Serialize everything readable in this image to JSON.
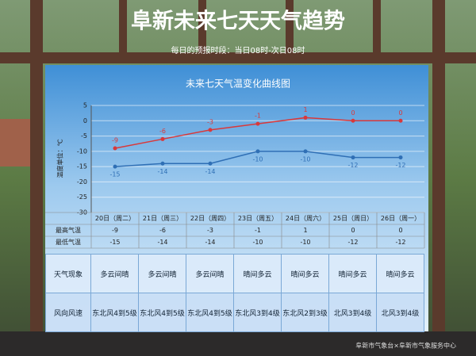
{
  "header": {
    "title": "阜新未来七天天气趋势",
    "subtitle": "每日的预报时段：当日08时-次日08时"
  },
  "chart_data": {
    "type": "line",
    "title": "未来七天气温变化曲线图",
    "ylabel": "温度单位：℃",
    "categories": [
      "20日（周二）",
      "21日（周三）",
      "22日（周四）",
      "23日（周五）",
      "24日（周六）",
      "25日（周日）",
      "26日（周一）"
    ],
    "series": [
      {
        "name": "最高气温",
        "color": "#d9383a",
        "values": [
          -9,
          -6,
          -3,
          -1,
          1,
          0,
          0
        ]
      },
      {
        "name": "最低气温",
        "color": "#2f6fb5",
        "values": [
          -15,
          -14,
          -14,
          -10,
          -10,
          -12,
          -12
        ]
      }
    ],
    "ylim": [
      -30,
      5
    ],
    "yticks": [
      5,
      0,
      -5,
      -10,
      -15,
      -20,
      -25,
      -30
    ],
    "grid": true
  },
  "weather_table": {
    "rows": [
      {
        "label": "天气现象",
        "values": [
          "多云间晴",
          "多云间晴",
          "多云间晴",
          "晴间多云",
          "晴间多云",
          "晴间多云",
          "晴间多云"
        ]
      },
      {
        "label": "风向风速",
        "values": [
          "东北风4到5级",
          "东北风4到5级",
          "东北风4到5级",
          "东北风3到4级",
          "东北风2到3级",
          "北风3到4级",
          "北风3到4级"
        ]
      }
    ]
  },
  "footer": "阜新市气象台×阜新市气象服务中心"
}
